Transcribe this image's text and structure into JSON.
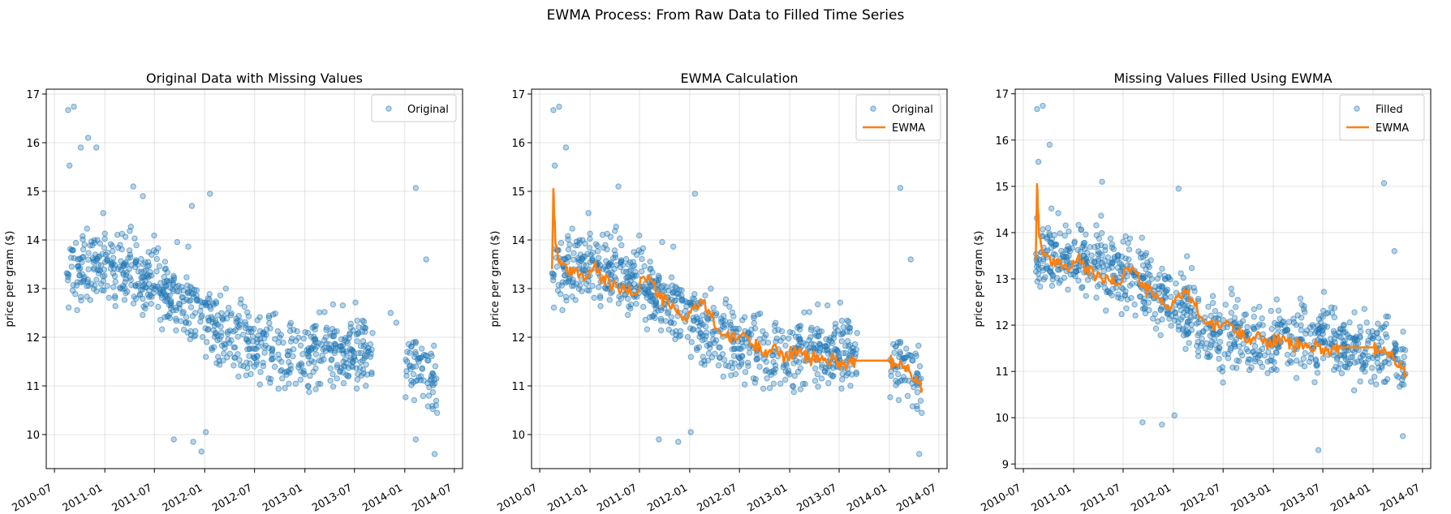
{
  "figure": {
    "title": "EWMA Process: From Raw Data to Filled Time Series"
  },
  "colors": {
    "original": "#1f77b4",
    "ewma": "#ff7f0e",
    "grid": "#b0b0b0"
  },
  "chart_data": [
    {
      "type": "scatter",
      "title": "Original Data with Missing Values",
      "xlabel": "",
      "ylabel": "price per gram ($)",
      "x_ticks": [
        "2010-07",
        "2011-01",
        "2011-07",
        "2012-01",
        "2012-07",
        "2013-01",
        "2013-07",
        "2014-01",
        "2014-07"
      ],
      "y_ticks": [
        10,
        11,
        12,
        13,
        14,
        15,
        16,
        17
      ],
      "xlim": [
        "2010-06-01",
        "2014-07-31"
      ],
      "ylim": [
        9.3,
        17.1
      ],
      "grid": true,
      "legend_position": "top-right",
      "series": [
        {
          "name": "Original",
          "kind": "scatter",
          "points": [
            [
              "2010-08-20",
              16.67
            ],
            [
              "2010-08-25",
              15.53
            ],
            [
              "2010-09-10",
              16.74
            ],
            [
              "2010-10-05",
              15.9
            ],
            [
              "2010-11-01",
              16.1
            ],
            [
              "2010-12-01",
              15.9
            ],
            [
              "2011-04-15",
              15.1
            ],
            [
              "2011-05-20",
              14.9
            ],
            [
              "2011-11-15",
              14.7
            ],
            [
              "2012-01-20",
              14.95
            ],
            [
              "2014-02-10",
              15.07
            ],
            [
              "2014-03-20",
              13.6
            ],
            [
              "2011-09-10",
              9.9
            ],
            [
              "2011-11-20",
              9.85
            ],
            [
              "2012-01-05",
              10.05
            ],
            [
              "2011-12-20",
              9.65
            ],
            [
              "2014-02-10",
              9.9
            ],
            [
              "2014-04-20",
              9.6
            ],
            [
              "2013-11-10",
              12.5
            ],
            [
              "2013-12-01",
              12.3
            ],
            [
              "2014-01-10",
              11.7
            ],
            [
              "2014-03-01",
              11.2
            ],
            [
              "2014-03-30",
              10.8
            ],
            [
              "2014-04-25",
              10.6
            ]
          ]
        }
      ]
    },
    {
      "type": "line",
      "title": "EWMA Calculation",
      "xlabel": "",
      "ylabel": "price per gram ($)",
      "x_ticks": [
        "2010-07",
        "2011-01",
        "2011-07",
        "2012-01",
        "2012-07",
        "2013-01",
        "2013-07",
        "2014-01",
        "2014-07"
      ],
      "y_ticks": [
        10,
        11,
        12,
        13,
        14,
        15,
        16,
        17
      ],
      "xlim": [
        "2010-06-01",
        "2014-07-31"
      ],
      "ylim": [
        9.3,
        17.1
      ],
      "grid": true,
      "legend_position": "top-right",
      "series": [
        {
          "name": "Original",
          "kind": "scatter",
          "points": [
            [
              "2010-08-20",
              16.67
            ],
            [
              "2010-08-25",
              15.53
            ],
            [
              "2010-09-10",
              16.74
            ],
            [
              "2010-10-05",
              15.9
            ],
            [
              "2011-04-15",
              15.1
            ],
            [
              "2012-01-20",
              14.95
            ],
            [
              "2011-09-10",
              9.9
            ],
            [
              "2011-11-20",
              9.85
            ],
            [
              "2012-01-05",
              10.05
            ],
            [
              "2014-02-10",
              15.07
            ],
            [
              "2014-03-20",
              13.6
            ],
            [
              "2014-04-20",
              9.6
            ]
          ]
        },
        {
          "name": "EWMA",
          "kind": "line",
          "points": [
            [
              "2010-08-15",
              13.4
            ],
            [
              "2010-08-20",
              15.05
            ],
            [
              "2010-08-28",
              13.9
            ],
            [
              "2010-09-15",
              13.5
            ],
            [
              "2010-10-15",
              13.3
            ],
            [
              "2010-11-15",
              13.4
            ],
            [
              "2010-12-15",
              13.2
            ],
            [
              "2011-01-15",
              13.45
            ],
            [
              "2011-02-15",
              13.2
            ],
            [
              "2011-03-15",
              13.1
            ],
            [
              "2011-04-15",
              13.0
            ],
            [
              "2011-05-15",
              12.95
            ],
            [
              "2011-06-15",
              12.9
            ],
            [
              "2011-07-15",
              13.25
            ],
            [
              "2011-08-15",
              13.15
            ],
            [
              "2011-09-15",
              12.8
            ],
            [
              "2011-10-15",
              12.7
            ],
            [
              "2011-11-15",
              12.5
            ],
            [
              "2011-12-15",
              12.4
            ],
            [
              "2012-01-15",
              12.6
            ],
            [
              "2012-02-15",
              12.7
            ],
            [
              "2012-03-15",
              12.5
            ],
            [
              "2012-04-15",
              12.15
            ],
            [
              "2012-05-15",
              12.0
            ],
            [
              "2012-06-15",
              11.95
            ],
            [
              "2012-07-15",
              12.1
            ],
            [
              "2012-08-15",
              11.85
            ],
            [
              "2012-09-15",
              11.8
            ],
            [
              "2012-10-15",
              11.7
            ],
            [
              "2012-11-15",
              11.75
            ],
            [
              "2012-12-15",
              11.6
            ],
            [
              "2013-01-15",
              11.7
            ],
            [
              "2013-02-15",
              11.65
            ],
            [
              "2013-03-15",
              11.55
            ],
            [
              "2013-04-15",
              11.6
            ],
            [
              "2013-05-15",
              11.5
            ],
            [
              "2013-06-15",
              11.55
            ],
            [
              "2013-07-15",
              11.45
            ],
            [
              "2013-08-15",
              11.5
            ],
            [
              "2013-09-05",
              11.52
            ],
            [
              "2014-01-05",
              11.52
            ],
            [
              "2014-01-15",
              11.4
            ],
            [
              "2014-02-15",
              11.45
            ],
            [
              "2014-03-15",
              11.3
            ],
            [
              "2014-04-10",
              11.2
            ],
            [
              "2014-05-01",
              10.95
            ]
          ]
        }
      ]
    },
    {
      "type": "line",
      "title": "Missing Values Filled Using EWMA",
      "xlabel": "",
      "ylabel": "price per gram ($)",
      "x_ticks": [
        "2010-07",
        "2011-01",
        "2011-07",
        "2012-01",
        "2012-07",
        "2013-01",
        "2013-07",
        "2014-01",
        "2014-07"
      ],
      "y_ticks": [
        9,
        10,
        11,
        12,
        13,
        14,
        15,
        16,
        17
      ],
      "xlim": [
        "2010-06-01",
        "2014-07-31"
      ],
      "ylim": [
        8.9,
        17.1
      ],
      "grid": true,
      "legend_position": "top-right",
      "series": [
        {
          "name": "Filled",
          "kind": "scatter",
          "points": [
            [
              "2010-08-20",
              16.67
            ],
            [
              "2010-08-25",
              15.53
            ],
            [
              "2010-09-10",
              16.74
            ],
            [
              "2010-10-05",
              15.9
            ],
            [
              "2011-04-15",
              15.1
            ],
            [
              "2012-01-20",
              14.95
            ],
            [
              "2011-09-10",
              9.9
            ],
            [
              "2011-11-20",
              9.85
            ],
            [
              "2012-01-05",
              10.05
            ],
            [
              "2013-06-15",
              9.3
            ],
            [
              "2014-02-10",
              15.07
            ],
            [
              "2014-03-20",
              13.6
            ],
            [
              "2014-04-20",
              9.6
            ]
          ]
        },
        {
          "name": "EWMA",
          "kind": "line",
          "points": [
            [
              "2010-08-15",
              13.4
            ],
            [
              "2010-08-20",
              15.05
            ],
            [
              "2010-08-28",
              13.9
            ],
            [
              "2010-09-15",
              13.5
            ],
            [
              "2010-10-15",
              13.3
            ],
            [
              "2010-11-15",
              13.4
            ],
            [
              "2010-12-15",
              13.2
            ],
            [
              "2011-01-15",
              13.45
            ],
            [
              "2011-02-15",
              13.2
            ],
            [
              "2011-03-15",
              13.1
            ],
            [
              "2011-04-15",
              13.0
            ],
            [
              "2011-05-15",
              12.95
            ],
            [
              "2011-06-15",
              12.9
            ],
            [
              "2011-07-15",
              13.25
            ],
            [
              "2011-08-15",
              13.15
            ],
            [
              "2011-09-15",
              12.8
            ],
            [
              "2011-10-15",
              12.7
            ],
            [
              "2011-11-15",
              12.5
            ],
            [
              "2011-12-15",
              12.4
            ],
            [
              "2012-01-15",
              12.6
            ],
            [
              "2012-02-15",
              12.7
            ],
            [
              "2012-03-15",
              12.5
            ],
            [
              "2012-04-15",
              12.15
            ],
            [
              "2012-05-15",
              12.0
            ],
            [
              "2012-06-15",
              11.95
            ],
            [
              "2012-07-15",
              12.1
            ],
            [
              "2012-08-15",
              11.85
            ],
            [
              "2012-09-15",
              11.8
            ],
            [
              "2012-10-15",
              11.7
            ],
            [
              "2012-11-15",
              11.75
            ],
            [
              "2012-12-15",
              11.6
            ],
            [
              "2013-01-15",
              11.7
            ],
            [
              "2013-02-15",
              11.65
            ],
            [
              "2013-03-15",
              11.55
            ],
            [
              "2013-04-15",
              11.6
            ],
            [
              "2013-05-15",
              11.5
            ],
            [
              "2013-06-15",
              11.55
            ],
            [
              "2013-07-15",
              11.45
            ],
            [
              "2013-08-15",
              11.5
            ],
            [
              "2013-09-05",
              11.52
            ],
            [
              "2014-01-05",
              11.52
            ],
            [
              "2014-01-15",
              11.4
            ],
            [
              "2014-02-15",
              11.45
            ],
            [
              "2014-03-15",
              11.3
            ],
            [
              "2014-04-10",
              11.2
            ],
            [
              "2014-05-01",
              10.95
            ]
          ]
        }
      ]
    }
  ]
}
